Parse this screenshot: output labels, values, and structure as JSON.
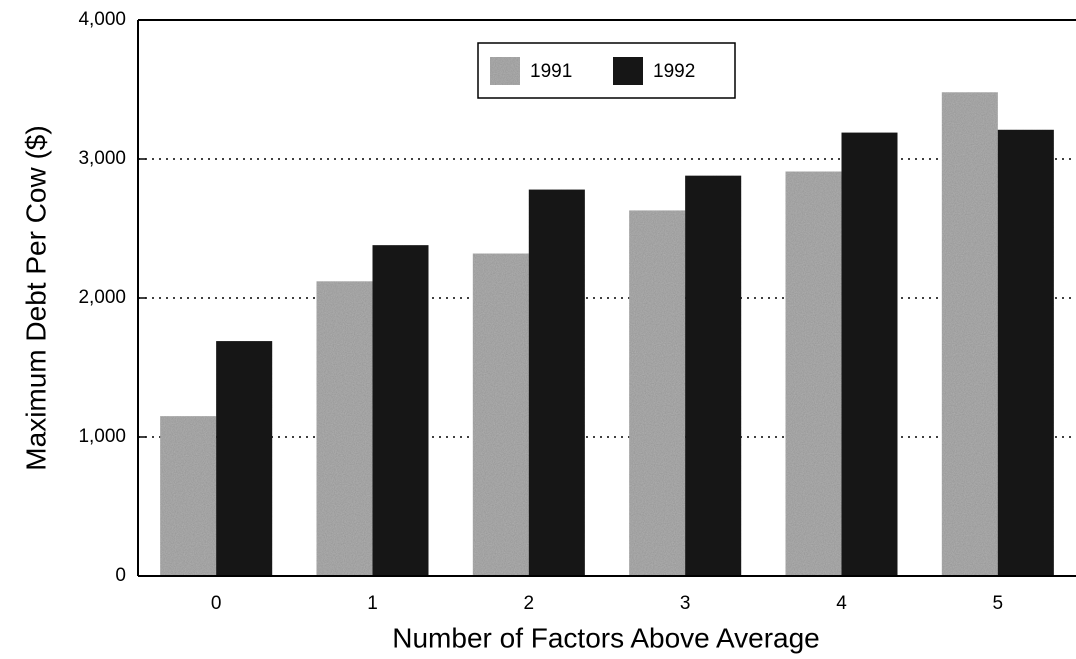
{
  "chart_data": {
    "type": "bar",
    "xlabel": "Number of Factors Above Average",
    "ylabel": "Maximum Debt Per Cow ($)",
    "categories": [
      "0",
      "1",
      "2",
      "3",
      "4",
      "5"
    ],
    "series": [
      {
        "name": "1991",
        "color": "#b2b2b2",
        "values": [
          1150,
          2120,
          2320,
          2630,
          2910,
          3480
        ]
      },
      {
        "name": "1992",
        "color": "#1e1e1e",
        "values": [
          1690,
          2380,
          2780,
          2880,
          3190,
          3210
        ]
      }
    ],
    "ylim": [
      0,
      4000
    ],
    "yticks": [
      0,
      {
        "value": 1000,
        "label": "1,000"
      },
      {
        "value": 2000,
        "label": "2,000"
      },
      {
        "value": 3000,
        "label": "3,000"
      },
      {
        "value": 4000,
        "label": "4,000"
      }
    ],
    "grid": true,
    "legend": "top"
  }
}
